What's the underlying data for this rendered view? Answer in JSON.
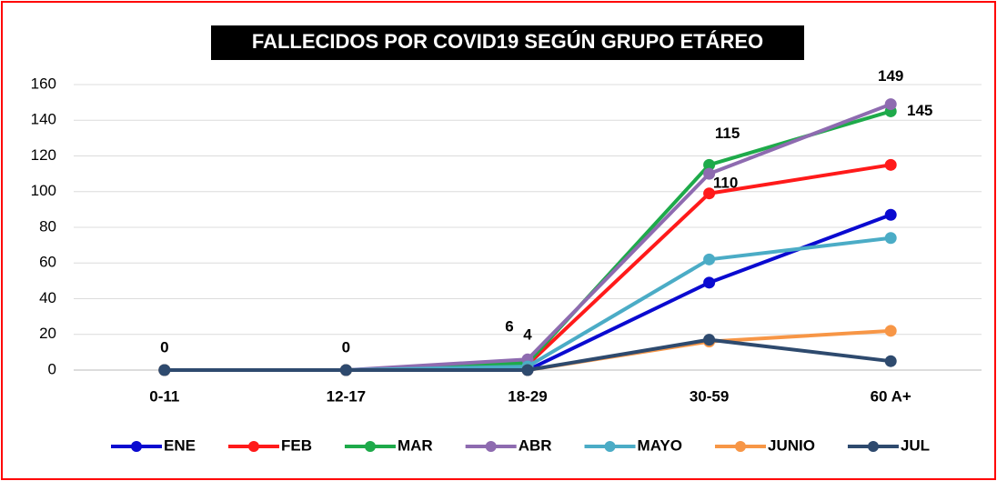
{
  "chart_data": {
    "type": "line",
    "title": "FALLECIDOS POR COVID19 SEGÚN GRUPO ETÁREO",
    "categories": [
      "0-11",
      "12-17",
      "18-29",
      "30-59",
      "60 A+"
    ],
    "series": [
      {
        "name": "ENE",
        "color": "#0a0ad0",
        "values": [
          0,
          0,
          0,
          49,
          87
        ]
      },
      {
        "name": "FEB",
        "color": "#ff1a1a",
        "values": [
          0,
          0,
          3,
          99,
          115
        ]
      },
      {
        "name": "MAR",
        "color": "#1eaa4a",
        "values": [
          0,
          0,
          4,
          115,
          145
        ],
        "value_labels": [
          null,
          null,
          "4",
          "115",
          "145"
        ]
      },
      {
        "name": "ABR",
        "color": "#8e6bb0",
        "values": [
          0,
          0,
          6,
          110,
          149
        ],
        "value_labels": [
          null,
          null,
          "6",
          "110",
          "149"
        ]
      },
      {
        "name": "MAYO",
        "color": "#4bacc6",
        "values": [
          0,
          0,
          2,
          62,
          74
        ]
      },
      {
        "name": "JUNIO",
        "color": "#f79646",
        "values": [
          0,
          0,
          0,
          16,
          22
        ]
      },
      {
        "name": "JUL",
        "color": "#2e4a6e",
        "values": [
          0,
          0,
          0,
          17,
          5
        ],
        "value_labels": [
          "0",
          "0",
          null,
          null,
          null
        ]
      }
    ],
    "ylim": [
      0,
      160
    ],
    "yticks": [
      0,
      20,
      40,
      60,
      80,
      100,
      120,
      140,
      160
    ],
    "grid": true,
    "legend": "bottom"
  }
}
